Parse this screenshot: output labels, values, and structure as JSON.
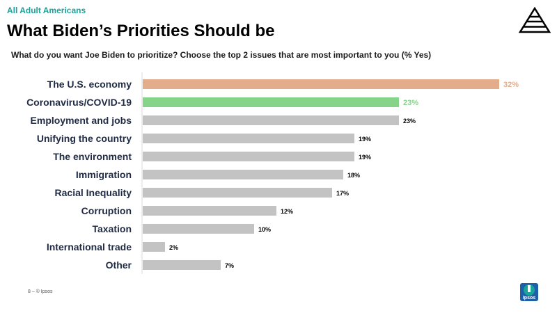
{
  "header": {
    "kicker": "All Adult Americans",
    "title": "What Biden’s Priorities Should be",
    "subtitle": "What do you want Joe Biden to prioritize? Choose the top 2 issues that are most important to you (% Yes)"
  },
  "footer": {
    "page": "8 –",
    "copyright": "© Ipsos"
  },
  "logo": {
    "word": "Ipsos"
  },
  "colors": {
    "accent": "#1aa39a",
    "highlight_economy": "#e3ad8c",
    "highlight_covid": "#86d48a",
    "bar_default": "#c3c3c3",
    "brand_blue": "#1d5fa8"
  },
  "chart_data": {
    "type": "bar",
    "orientation": "horizontal",
    "categories": [
      "The U.S. economy",
      "Coronavirus/COVID-19",
      "Employment and jobs",
      "Unifying the country",
      "The environment",
      "Immigration",
      "Racial Inequality",
      "Corruption",
      "Taxation",
      "International trade",
      "Other"
    ],
    "values": [
      32,
      23,
      23,
      19,
      19,
      18,
      17,
      12,
      10,
      2,
      7
    ],
    "value_labels": [
      "32%",
      "23%",
      "23%",
      "19%",
      "19%",
      "18%",
      "17%",
      "12%",
      "10%",
      "2%",
      "7%"
    ],
    "bar_colors": [
      "#e3ad8c",
      "#86d48a",
      "#c3c3c3",
      "#c3c3c3",
      "#c3c3c3",
      "#c3c3c3",
      "#c3c3c3",
      "#c3c3c3",
      "#c3c3c3",
      "#c3c3c3",
      "#c3c3c3"
    ],
    "label_colors": [
      "#e3ad8c",
      "#86d48a",
      "#000000",
      "#000000",
      "#000000",
      "#000000",
      "#000000",
      "#000000",
      "#000000",
      "#000000",
      "#000000"
    ],
    "xlim": [
      0,
      34
    ],
    "grid": false,
    "legend": "none"
  }
}
